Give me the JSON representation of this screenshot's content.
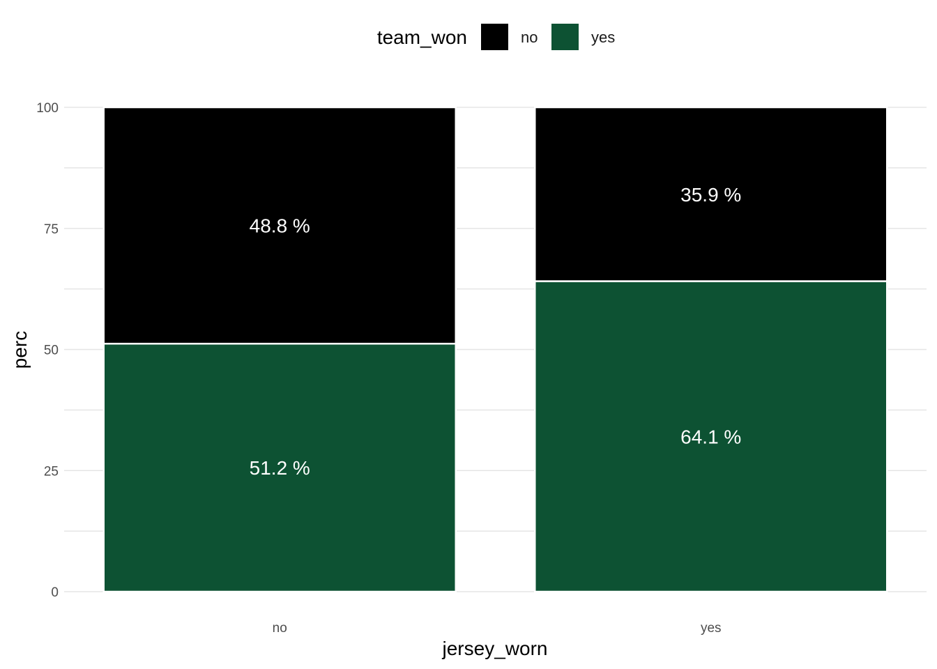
{
  "chart_data": {
    "type": "bar",
    "stacked": true,
    "categories": [
      "no",
      "yes"
    ],
    "series": [
      {
        "name": "yes",
        "values": [
          51.2,
          64.1
        ],
        "labels": [
          "51.2 %",
          "64.1 %"
        ],
        "color": "#0d5233"
      },
      {
        "name": "no",
        "values": [
          48.8,
          35.9
        ],
        "labels": [
          "48.8 %",
          "35.9 %"
        ],
        "color": "#000000"
      }
    ],
    "xlabel": "jersey_worn",
    "ylabel": "perc",
    "ylim": [
      0,
      100
    ],
    "yticks": [
      0,
      25,
      50,
      75,
      100
    ],
    "grid": true,
    "legend": {
      "title": "team_won",
      "position": "top",
      "entries": [
        {
          "label": "no",
          "color": "#000000"
        },
        {
          "label": "yes",
          "color": "#0d5233"
        }
      ]
    }
  }
}
